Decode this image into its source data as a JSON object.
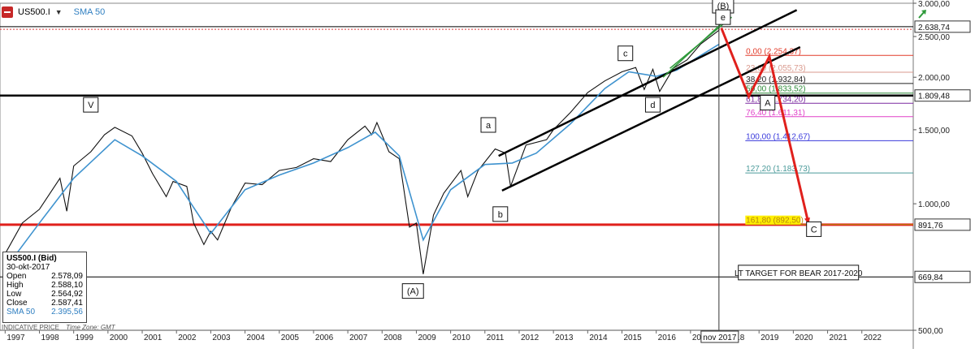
{
  "toolbar": {
    "symbol": "US500.I",
    "indicator": "SMA 50",
    "icon": "chart-logo-icon",
    "trend_icon": "green-trend-arrow-icon"
  },
  "info_box": {
    "title": "US500.I (Bid)",
    "date": "30-okt-2017",
    "rows": [
      {
        "label": "Open",
        "value": "2.578,09"
      },
      {
        "label": "High",
        "value": "2.588,10"
      },
      {
        "label": "Low",
        "value": "2.564,92"
      },
      {
        "label": "Close",
        "value": "2.587,41"
      },
      {
        "label": "SMA 50",
        "value": "2.395,56"
      }
    ]
  },
  "footer": {
    "indicative": "INDICATIVE PRICE",
    "timezone": "Time Zone: GMT"
  },
  "chart_data": {
    "type": "line",
    "series": [
      {
        "name": "US500.I",
        "points": [
          [
            1997.0,
            760
          ],
          [
            1997.5,
            900
          ],
          [
            1998.0,
            970
          ],
          [
            1998.6,
            1150
          ],
          [
            1998.8,
            960
          ],
          [
            1999.0,
            1230
          ],
          [
            1999.5,
            1330
          ],
          [
            1999.9,
            1460
          ],
          [
            2000.2,
            1520
          ],
          [
            2000.7,
            1450
          ],
          [
            2001.0,
            1320
          ],
          [
            2001.3,
            1180
          ],
          [
            2001.7,
            1040
          ],
          [
            2001.9,
            1130
          ],
          [
            2002.3,
            1100
          ],
          [
            2002.5,
            900
          ],
          [
            2002.8,
            800
          ],
          [
            2003.0,
            860
          ],
          [
            2003.2,
            820
          ],
          [
            2003.6,
            980
          ],
          [
            2004.0,
            1120
          ],
          [
            2004.5,
            1110
          ],
          [
            2005.0,
            1200
          ],
          [
            2005.5,
            1220
          ],
          [
            2006.0,
            1280
          ],
          [
            2006.5,
            1260
          ],
          [
            2007.0,
            1420
          ],
          [
            2007.5,
            1530
          ],
          [
            2007.7,
            1460
          ],
          [
            2007.85,
            1560
          ],
          [
            2008.2,
            1330
          ],
          [
            2008.5,
            1280
          ],
          [
            2008.8,
            880
          ],
          [
            2009.0,
            900
          ],
          [
            2009.2,
            680
          ],
          [
            2009.5,
            940
          ],
          [
            2009.8,
            1060
          ],
          [
            2010.3,
            1200
          ],
          [
            2010.5,
            1040
          ],
          [
            2010.8,
            1200
          ],
          [
            2011.3,
            1350
          ],
          [
            2011.6,
            1320
          ],
          [
            2011.75,
            1100
          ],
          [
            2012.2,
            1380
          ],
          [
            2012.8,
            1420
          ],
          [
            2013.0,
            1500
          ],
          [
            2013.5,
            1650
          ],
          [
            2014.0,
            1840
          ],
          [
            2014.5,
            1960
          ],
          [
            2015.0,
            2060
          ],
          [
            2015.4,
            2110
          ],
          [
            2015.65,
            1870
          ],
          [
            2015.9,
            2090
          ],
          [
            2016.1,
            1850
          ],
          [
            2016.5,
            2100
          ],
          [
            2016.9,
            2200
          ],
          [
            2017.3,
            2400
          ],
          [
            2017.83,
            2587
          ]
        ]
      },
      {
        "name": "SMA 50",
        "points": [
          [
            1997.0,
            700
          ],
          [
            1998.0,
            900
          ],
          [
            1999.0,
            1150
          ],
          [
            2000.2,
            1420
          ],
          [
            2001.0,
            1300
          ],
          [
            2002.0,
            1130
          ],
          [
            2003.0,
            850
          ],
          [
            2004.0,
            1080
          ],
          [
            2005.0,
            1170
          ],
          [
            2006.0,
            1250
          ],
          [
            2007.0,
            1360
          ],
          [
            2007.8,
            1480
          ],
          [
            2008.5,
            1300
          ],
          [
            2009.2,
            820
          ],
          [
            2010.0,
            1080
          ],
          [
            2011.0,
            1240
          ],
          [
            2011.8,
            1250
          ],
          [
            2012.5,
            1320
          ],
          [
            2013.5,
            1550
          ],
          [
            2014.5,
            1880
          ],
          [
            2015.2,
            2060
          ],
          [
            2016.0,
            2010
          ],
          [
            2016.6,
            2080
          ],
          [
            2017.83,
            2396
          ]
        ]
      }
    ],
    "y_axis": {
      "min": 500,
      "max": 3000,
      "log_scale": true,
      "ticks": [
        "3.000,00",
        "2.500,00",
        "2.000,00",
        "1.500,00",
        "1.000,00",
        "500,00"
      ],
      "tick_values": [
        3000,
        2500,
        2000,
        1500,
        1000,
        500
      ]
    },
    "x_axis": {
      "min": 1996.85,
      "max": 2023.5,
      "labels": [
        "1997",
        "1998",
        "1999",
        "2000",
        "2001",
        "2002",
        "2003",
        "2004",
        "2005",
        "2006",
        "2007",
        "2008",
        "2009",
        "2010",
        "2011",
        "2012",
        "2013",
        "2014",
        "2015",
        "2016",
        "2017",
        "2018",
        "2019",
        "2020",
        "2021",
        "2022"
      ],
      "cursor_label": "nov 2017",
      "cursor_x": 2017.83
    },
    "price_labels": [
      {
        "value": 2638.74,
        "text": "2.638,74"
      },
      {
        "value": 1809.48,
        "text": "1.809,48"
      },
      {
        "value": 891.76,
        "text": "891,76"
      },
      {
        "value": 669.84,
        "text": "669,84"
      }
    ],
    "horizontal_lines": [
      {
        "value": 2638.74,
        "color": "#000000"
      },
      {
        "value": 2600,
        "color": "#d93a3a"
      },
      {
        "value": 1809.48,
        "color": "#000000"
      },
      {
        "value": 891.76,
        "color": "#e0201c"
      },
      {
        "value": 669.84,
        "color": "#000000"
      }
    ],
    "fibonacci": [
      {
        "label": "0,00 (2.254,37)",
        "value": 2254.37,
        "color": "#e23b2a"
      },
      {
        "label": "23,60 (2.055,73)",
        "value": 2055.73,
        "color": "#d99a8e"
      },
      {
        "label": "38,20 (1.932,84)",
        "value": 1932.84,
        "color": "#222222"
      },
      {
        "label": "50,00 (1.833,52)",
        "value": 1833.52,
        "color": "#2e8b3a"
      },
      {
        "label": "61,80 (1.734,20)",
        "value": 1734.2,
        "color": "#7b2aa0"
      },
      {
        "label": "76,40 (1.611,31)",
        "value": 1611.31,
        "color": "#e040c8"
      },
      {
        "label": "100,00 (1.412,67)",
        "value": 1412.67,
        "color": "#3a3adc"
      },
      {
        "label": "127,20 (1.183,73)",
        "value": 1183.73,
        "color": "#4a9a9a"
      },
      {
        "label": "161,80 (892,50)",
        "value": 892.5,
        "color": "#b8860b",
        "highlight": "#ffef00"
      }
    ],
    "trendlines": [
      {
        "from": [
          2011.4,
          1300
        ],
        "to": [
          2020.1,
          2890
        ],
        "color": "#000000"
      },
      {
        "from": [
          2011.5,
          1075
        ],
        "to": [
          2020.2,
          2360
        ],
        "color": "#000000"
      },
      {
        "from": [
          2016.2,
          2000
        ],
        "to": [
          2018.15,
          2800
        ],
        "color": "#2e9a3a"
      },
      {
        "from": [
          2016.4,
          2100
        ],
        "to": [
          2018.2,
          2780
        ],
        "color": "#2e9a3a"
      }
    ],
    "projection": {
      "color": "#e0201c",
      "points": [
        [
          2017.9,
          2620
        ],
        [
          2018.7,
          1800
        ],
        [
          2019.3,
          2240
        ],
        [
          2020.45,
          892
        ]
      ]
    },
    "wave_labels": [
      {
        "text": "(B)",
        "x": 2017.95,
        "y": 2960
      },
      {
        "text": "e",
        "x": 2017.95,
        "y": 2780
      },
      {
        "text": "c",
        "x": 2015.1,
        "y": 2280
      },
      {
        "text": "d",
        "x": 2015.9,
        "y": 1720
      },
      {
        "text": "A",
        "x": 2019.25,
        "y": 1740
      },
      {
        "text": "a",
        "x": 2011.1,
        "y": 1540
      },
      {
        "text": "b",
        "x": 2011.45,
        "y": 945
      },
      {
        "text": "V",
        "x": 1999.5,
        "y": 1720
      },
      {
        "text": "(A)",
        "x": 2008.9,
        "y": 620
      },
      {
        "text": "C",
        "x": 2020.6,
        "y": 870
      }
    ],
    "annotation": {
      "text": "LT TARGET FOR BEAR 2017-2020",
      "x": 2020.15,
      "y": 686
    }
  }
}
